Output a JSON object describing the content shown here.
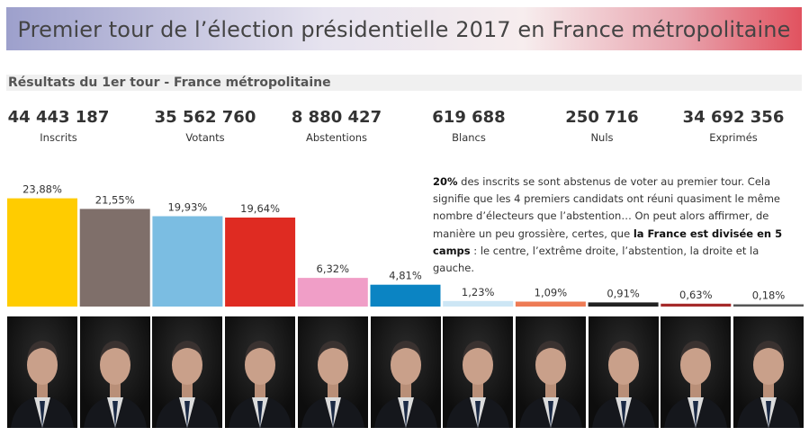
{
  "title": "Premier tour de l’élection présidentielle 2017 en France métropolitaine",
  "subtitle": "Résultats du 1er tour - France métropolitaine",
  "kpis": [
    {
      "value": "44 443 187",
      "label": "Inscrits"
    },
    {
      "value": "35 562 760",
      "label": "Votants"
    },
    {
      "value": "8 880 427",
      "label": "Abstentions"
    },
    {
      "value": "619 688",
      "label": "Blancs"
    },
    {
      "value": "250 716",
      "label": "Nuls"
    },
    {
      "value": "34 692 356",
      "label": "Exprimés"
    }
  ],
  "note": {
    "p1": "20%",
    "p2": " des inscrits se sont abstenus de voter au premier tour. Cela signifie que les 4 premiers candidats ont réuni quasiment le même nombre d’électeurs que l’abstention… On peut alors affirmer, de manière un peu grossière, certes, que ",
    "p3": "la France est divisée en 5 camps",
    "p4": " : le centre, l’extrême droite, l’abstention, la droite et la gauche."
  },
  "chart_data": {
    "type": "bar",
    "title": "Résultats du 1er tour - France métropolitaine",
    "unit": "%",
    "values": [
      23.88,
      21.55,
      19.93,
      19.64,
      6.32,
      4.81,
      1.23,
      1.09,
      0.91,
      0.63,
      0.18
    ],
    "labels": [
      "23,88%",
      "21,55%",
      "19,93%",
      "19,64%",
      "6,32%",
      "4,81%",
      "1,23%",
      "1,09%",
      "0,91%",
      "0,63%",
      "0,18%"
    ],
    "colors": [
      "#ffcc00",
      "#7f6f6a",
      "#7bbde2",
      "#df2b22",
      "#f09ec7",
      "#0b84c3",
      "#cde6f5",
      "#ee7b55",
      "#222222",
      "#a52a2a",
      "#555555"
    ],
    "ylim": [
      0,
      24
    ],
    "xlabel": "",
    "ylabel": ""
  },
  "photos": [
    {
      "icon": "candidate-portrait-icon"
    },
    {
      "icon": "candidate-portrait-icon"
    },
    {
      "icon": "candidate-portrait-icon"
    },
    {
      "icon": "candidate-portrait-icon"
    },
    {
      "icon": "candidate-portrait-icon"
    },
    {
      "icon": "candidate-portrait-icon"
    },
    {
      "icon": "candidate-portrait-icon"
    },
    {
      "icon": "candidate-portrait-icon"
    },
    {
      "icon": "candidate-portrait-icon"
    },
    {
      "icon": "candidate-portrait-icon"
    },
    {
      "icon": "candidate-portrait-icon"
    }
  ]
}
